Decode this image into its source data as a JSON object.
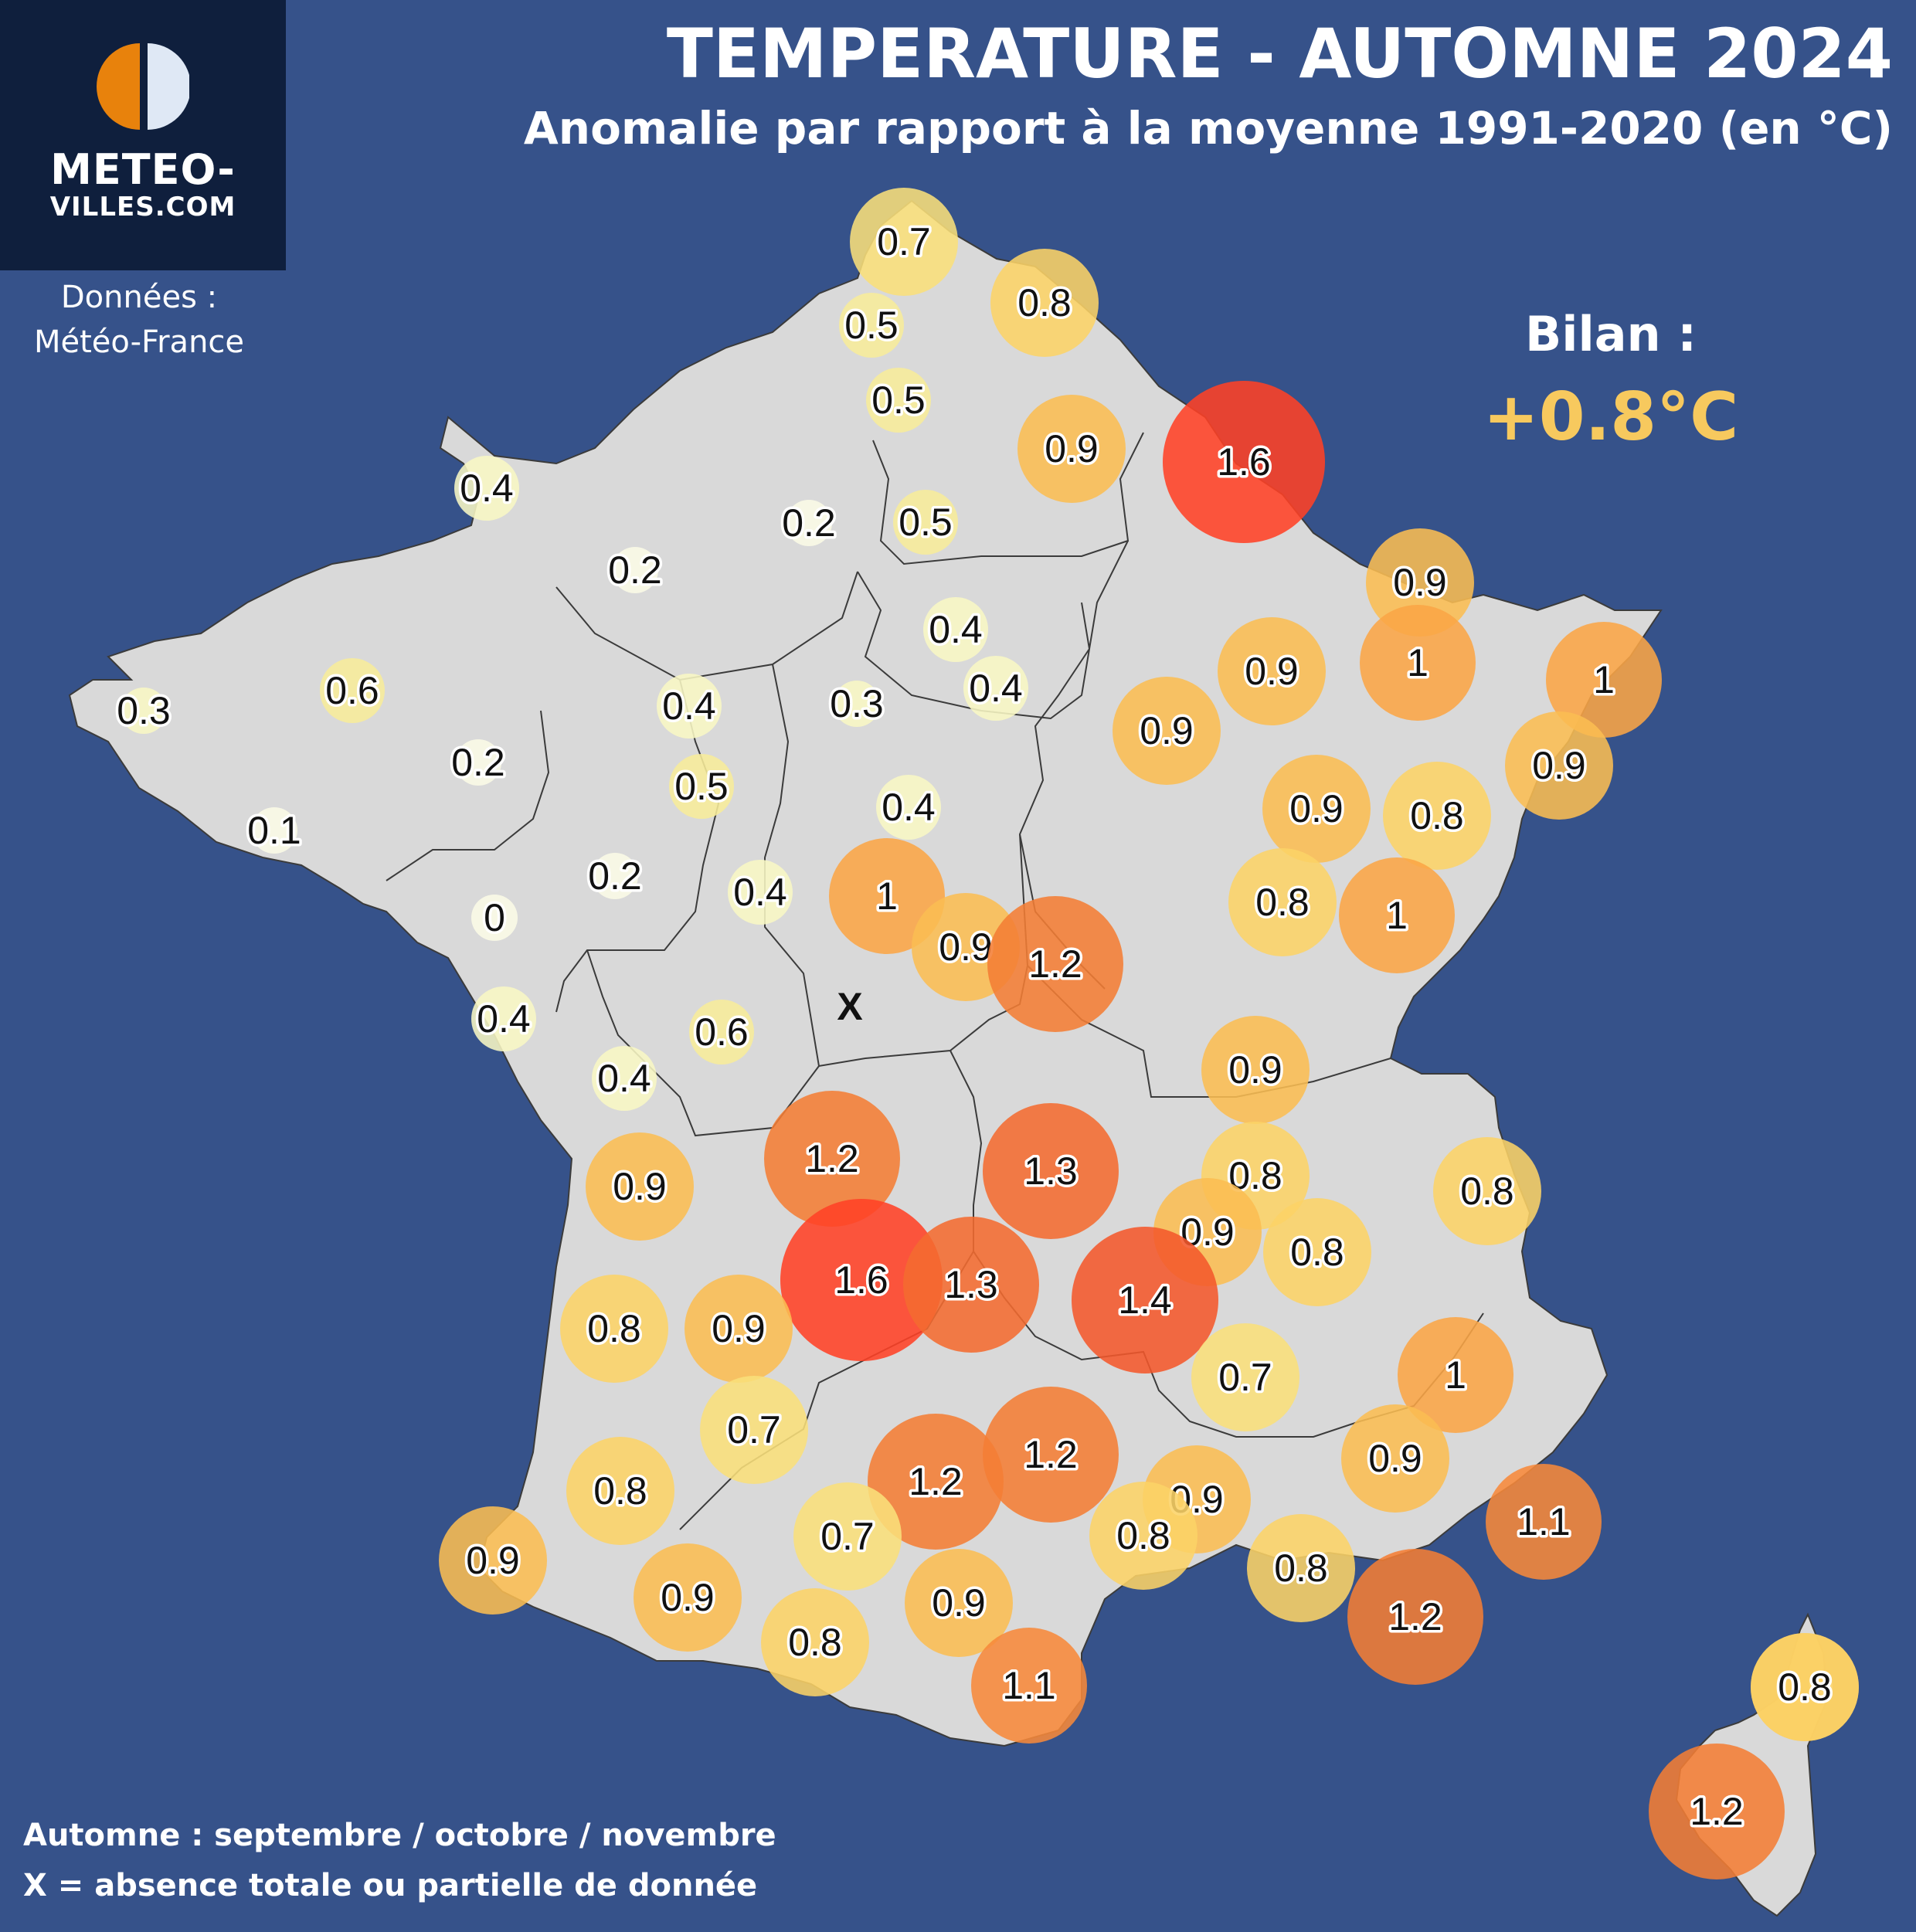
{
  "header": {
    "title": "TEMPERATURE - AUTOMNE 2024",
    "subtitle": "Anomalie par rapport à la moyenne 1991-2020 (en °C)"
  },
  "logo": {
    "line1": "METEO-",
    "line2": "VILLES.COM"
  },
  "source": {
    "label": "Données :",
    "name": "Météo-France"
  },
  "summary": {
    "label": "Bilan :",
    "value": "+0.8°C",
    "color": "#f7c95e"
  },
  "notes": {
    "season": "Automne : septembre / octobre / novembre",
    "missing": "X = absence totale ou partielle de donnée"
  },
  "colors": {
    "background": "#36528a",
    "land": "#d9d9d9",
    "logo_orange": "#e8820c",
    "logo_light": "#dfe8f5"
  },
  "map": {
    "missing_marker": "X",
    "color_scale": [
      {
        "max": 0.25,
        "color": "#fbfbe6"
      },
      {
        "max": 0.45,
        "color": "#f8f7c4"
      },
      {
        "max": 0.65,
        "color": "#f7ec9a"
      },
      {
        "max": 0.75,
        "color": "#f9df7a"
      },
      {
        "max": 0.85,
        "color": "#fcd366"
      },
      {
        "max": 0.95,
        "color": "#fbbd52"
      },
      {
        "max": 1.05,
        "color": "#fba545"
      },
      {
        "max": 1.15,
        "color": "#f7893a"
      },
      {
        "max": 1.25,
        "color": "#f47d34"
      },
      {
        "max": 1.35,
        "color": "#f46b30"
      },
      {
        "max": 1.45,
        "color": "#f4582b"
      },
      {
        "max": 9.99,
        "color": "#ff4126"
      }
    ],
    "stations": [
      {
        "label": "0.7",
        "value": 0.7
      },
      {
        "label": "0.8",
        "value": 0.8
      },
      {
        "label": "0.5",
        "value": 0.5
      },
      {
        "label": "0.5",
        "value": 0.5
      },
      {
        "label": "0.9",
        "value": 0.9
      },
      {
        "label": "1.6",
        "value": 1.6
      },
      {
        "label": "0.4",
        "value": 0.4
      },
      {
        "label": "0.2",
        "value": 0.2
      },
      {
        "label": "0.5",
        "value": 0.5
      },
      {
        "label": "0.2",
        "value": 0.2
      },
      {
        "label": "0.9",
        "value": 0.9
      },
      {
        "label": "0.4",
        "value": 0.4
      },
      {
        "label": "0.9",
        "value": 0.9
      },
      {
        "label": "1",
        "value": 1.0
      },
      {
        "label": "1",
        "value": 1.0
      },
      {
        "label": "0.3",
        "value": 0.3
      },
      {
        "label": "0.4",
        "value": 0.4
      },
      {
        "label": "0.4",
        "value": 0.4
      },
      {
        "label": "0.3",
        "value": 0.3
      },
      {
        "label": "0.6",
        "value": 0.6
      },
      {
        "label": "0.9",
        "value": 0.9
      },
      {
        "label": "0.9",
        "value": 0.9
      },
      {
        "label": "0.2",
        "value": 0.2
      },
      {
        "label": "0.5",
        "value": 0.5
      },
      {
        "label": "0.9",
        "value": 0.9
      },
      {
        "label": "0.8",
        "value": 0.8
      },
      {
        "label": "0.1",
        "value": 0.1
      },
      {
        "label": "0.4",
        "value": 0.4
      },
      {
        "label": "0.2",
        "value": 0.2
      },
      {
        "label": "0.4",
        "value": 0.4
      },
      {
        "label": "1",
        "value": 1.0
      },
      {
        "label": "0.8",
        "value": 0.8
      },
      {
        "label": "1",
        "value": 1.0
      },
      {
        "label": "0",
        "value": 0.0
      },
      {
        "label": "0.9",
        "value": 0.9
      },
      {
        "label": "1.2",
        "value": 1.2
      },
      {
        "label": "0.4",
        "value": 0.4
      },
      {
        "label": "0.6",
        "value": 0.6
      },
      {
        "label": "0.4",
        "value": 0.4
      },
      {
        "label": "0.9",
        "value": 0.9
      },
      {
        "label": "1.2",
        "value": 1.2
      },
      {
        "label": "1.3",
        "value": 1.3
      },
      {
        "label": "0.8",
        "value": 0.8
      },
      {
        "label": "0.9",
        "value": 0.9
      },
      {
        "label": "0.8",
        "value": 0.8
      },
      {
        "label": "0.8",
        "value": 0.8
      },
      {
        "label": "0.9",
        "value": 0.9
      },
      {
        "label": "1.6",
        "value": 1.6
      },
      {
        "label": "1.3",
        "value": 1.3
      },
      {
        "label": "1.4",
        "value": 1.4
      },
      {
        "label": "0.8",
        "value": 0.8
      },
      {
        "label": "0.9",
        "value": 0.9
      },
      {
        "label": "1",
        "value": 1.0
      },
      {
        "label": "0.7",
        "value": 0.7
      },
      {
        "label": "0.7",
        "value": 0.7
      },
      {
        "label": "0.9",
        "value": 0.9
      },
      {
        "label": "0.8",
        "value": 0.8
      },
      {
        "label": "1.2",
        "value": 1.2
      },
      {
        "label": "1.2",
        "value": 1.2
      },
      {
        "label": "0.9",
        "value": 0.9
      },
      {
        "label": "1.1",
        "value": 1.1
      },
      {
        "label": "0.7",
        "value": 0.7
      },
      {
        "label": "0.8",
        "value": 0.8
      },
      {
        "label": "0.9",
        "value": 0.9
      },
      {
        "label": "0.9",
        "value": 0.9
      },
      {
        "label": "0.8",
        "value": 0.8
      },
      {
        "label": "0.9",
        "value": 0.9
      },
      {
        "label": "1.2",
        "value": 1.2
      },
      {
        "label": "0.9",
        "value": 0.9
      },
      {
        "label": "0.8",
        "value": 0.8
      },
      {
        "label": "1.1",
        "value": 1.1
      },
      {
        "label": "0.8",
        "value": 0.8
      },
      {
        "label": "1.2",
        "value": 1.2
      }
    ]
  }
}
